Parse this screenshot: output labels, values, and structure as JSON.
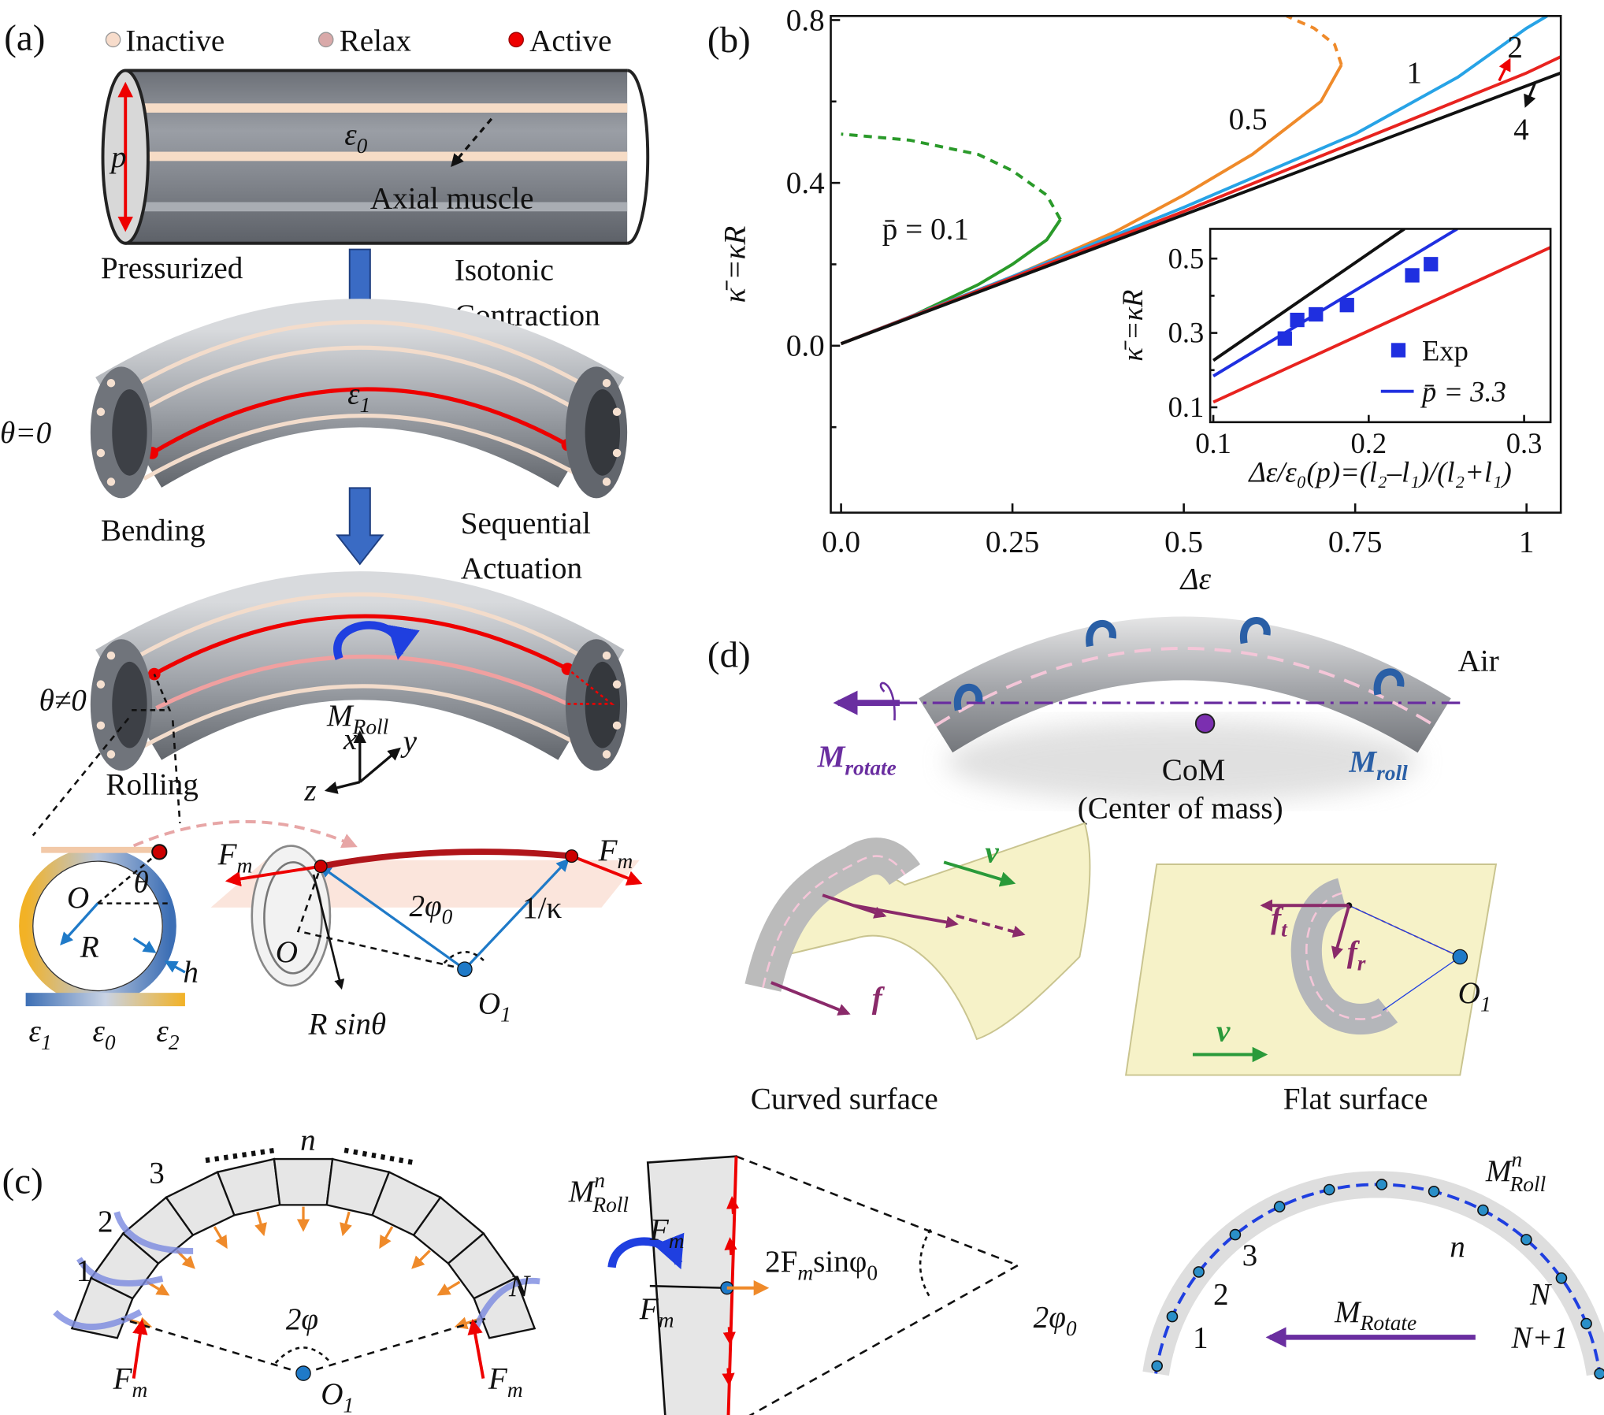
{
  "panel_a": {
    "label": "(a)",
    "legend": [
      "Inactive",
      "Relax",
      "Active"
    ],
    "p": "p",
    "strain0": [
      "ε",
      "0"
    ],
    "muscle": "Axial muscle",
    "pressurized": "Pressurized",
    "step1": [
      "Isotonic",
      "Contraction"
    ],
    "theta0": "θ=0",
    "strain1": [
      "ε",
      "1"
    ],
    "bending": "Bending",
    "step2": [
      "Sequential",
      "Actuation"
    ],
    "theta_ne": "θ≠0",
    "m_roll": [
      "M",
      "Roll"
    ],
    "rolling": "Rolling",
    "axes": [
      "x",
      "y",
      "z"
    ],
    "ring": {
      "O": "O",
      "theta": "θ",
      "R": "R",
      "h": "h"
    },
    "colorbar": [
      [
        "ε",
        "1"
      ],
      [
        "ε",
        "0"
      ],
      [
        "ε",
        "2"
      ]
    ],
    "geometry": {
      "fm_left": [
        "F",
        "m"
      ],
      "fm_right": [
        "F",
        "m"
      ],
      "angle": [
        "2φ",
        "0"
      ],
      "radius": "1/κ",
      "O": "O",
      "O1": [
        "O",
        "1"
      ],
      "rsin": "R sinθ"
    }
  },
  "chart_data": [
    {
      "type": "line",
      "panel_label": "(b)",
      "xlabel": "Δε",
      "ylabel": "κ̄ =κR",
      "xlim": [
        -0.015,
        1.05
      ],
      "ylim": [
        -0.41,
        0.81
      ],
      "xticks": [
        {
          "value": 0,
          "label": "0.0"
        },
        0.25,
        0.5,
        0.75,
        1
      ],
      "yticks": [
        {
          "value": 0,
          "label": "0.0"
        },
        0.4,
        0.8
      ],
      "yminor": [
        -0.2,
        0.2,
        0.6
      ],
      "series": [
        {
          "name": "p̄ = 0.1",
          "color": "#2a9a2a",
          "x": [
            0,
            0.1,
            0.2,
            0.25,
            0.3,
            0.32
          ],
          "values": [
            0.005,
            0.07,
            0.15,
            0.2,
            0.26,
            0.31
          ],
          "unstable_x": [
            0.32,
            0.3,
            0.25,
            0.2,
            0.1,
            0
          ],
          "unstable_values": [
            0.31,
            0.37,
            0.43,
            0.47,
            0.505,
            0.52
          ]
        },
        {
          "name": "0.5",
          "color": "#ef8a2a",
          "x": [
            0,
            0.25,
            0.4,
            0.5,
            0.6,
            0.7,
            0.73
          ],
          "values": [
            0.005,
            0.17,
            0.28,
            0.37,
            0.47,
            0.6,
            0.69
          ],
          "unstable_x": [
            0.73,
            0.72,
            0.69,
            0.65
          ],
          "unstable_values": [
            0.69,
            0.74,
            0.78,
            0.81
          ]
        },
        {
          "name": "1",
          "color": "#27a3e6",
          "x": [
            0,
            0.25,
            0.5,
            0.75,
            0.9,
            1.0,
            1.03
          ],
          "values": [
            0.005,
            0.17,
            0.34,
            0.52,
            0.66,
            0.78,
            0.81
          ]
        },
        {
          "name": "2",
          "color": "#e8231f",
          "x": [
            0,
            0.5,
            1.0,
            1.05
          ],
          "values": [
            0.005,
            0.33,
            0.67,
            0.71
          ]
        },
        {
          "name": "4",
          "color": "#111111",
          "x": [
            0,
            1.05
          ],
          "values": [
            0.005,
            0.67
          ]
        }
      ]
    },
    {
      "type": "line",
      "xlabel": "Δε/ε₀(p)=(l₂–l₁)/(l₂+l₁)",
      "ylabel": "κ̄ =κR",
      "xlim": [
        0.098,
        0.317
      ],
      "ylim": [
        0.06,
        0.58
      ],
      "xticks": [
        0.1,
        0.2,
        0.3
      ],
      "yticks": [
        0.1,
        0.3,
        0.5
      ],
      "yminor": [
        0.2,
        0.4
      ],
      "legend": "lower right",
      "series": [
        {
          "color": "#111111",
          "x": [
            0.1,
            0.223
          ],
          "values": [
            0.226,
            0.58
          ]
        },
        {
          "name": "p̄ = 3.3",
          "color": "#1f2fe0",
          "x": [
            0.1,
            0.257
          ],
          "values": [
            0.184,
            0.58
          ]
        },
        {
          "color": "#e8231f",
          "x": [
            0.1,
            0.317
          ],
          "values": [
            0.114,
            0.53
          ]
        }
      ],
      "scatter": {
        "name": "Exp",
        "color": "#1f2fe0",
        "x": [
          0.146,
          0.154,
          0.166,
          0.186,
          0.228,
          0.24
        ],
        "values": [
          0.285,
          0.335,
          0.35,
          0.375,
          0.455,
          0.485
        ]
      }
    }
  ],
  "panel_c": {
    "label": "(c)",
    "n": "n",
    "indices": [
      "3",
      "2",
      "1"
    ],
    "N": "N",
    "angle": "2φ",
    "fm_left": [
      "F",
      "m"
    ],
    "fm_right": [
      "F",
      "m"
    ],
    "O1": [
      "O",
      "1"
    ],
    "detail": {
      "m_roll": [
        "M",
        "n",
        "Roll"
      ],
      "fm_top": [
        "F",
        "m"
      ],
      "fm_bottom": [
        "F",
        "m"
      ],
      "force": [
        "2F",
        "m",
        "sinφ",
        "0"
      ],
      "angle": [
        "2φ",
        "0"
      ]
    },
    "chain": {
      "m_roll": [
        "M",
        "n",
        "Roll"
      ],
      "n": "n",
      "indices": [
        "3",
        "2",
        "1"
      ],
      "N": "N",
      "N1": "N+1",
      "m_rotate": [
        "M",
        "Rotate"
      ]
    }
  },
  "panel_d": {
    "label": "(d)",
    "air": "Air",
    "m_rotate": [
      "M",
      "rotate"
    ],
    "com": "CoM",
    "com_full": "(Center of mass)",
    "m_roll": [
      "M",
      "roll"
    ],
    "v_curved": "v",
    "f": "f",
    "curved": "Curved surface",
    "ft": [
      "f",
      "t"
    ],
    "fr": [
      "f",
      "r"
    ],
    "O1": [
      "O",
      "1"
    ],
    "v_flat": "v",
    "flat": "Flat surface"
  }
}
